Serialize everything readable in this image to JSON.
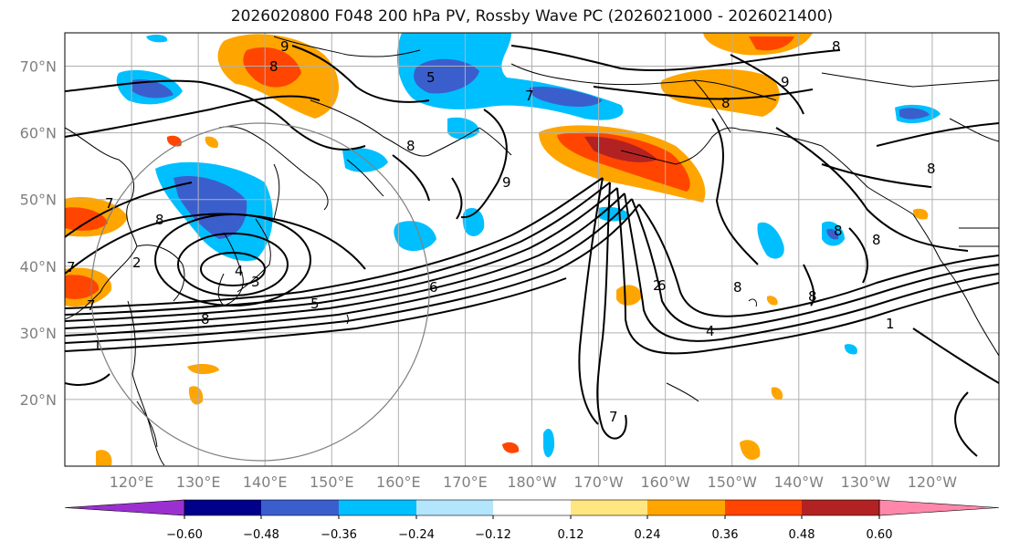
{
  "title": "2026020800 F048 200 hPa PV, Rossby Wave PC (2026021000 - 2026021400)",
  "map": {
    "extent": {
      "lon_min": 110,
      "lon_max": 250,
      "lat_min": 10,
      "lat_max": 75
    },
    "lat_labels": [
      "70°N",
      "60°N",
      "50°N",
      "40°N",
      "30°N",
      "20°N"
    ],
    "lon_labels": [
      "120°E",
      "130°E",
      "140°E",
      "150°E",
      "160°E",
      "170°E",
      "180°W",
      "170°W",
      "160°W",
      "150°W",
      "140°W",
      "130°W",
      "120°W"
    ],
    "contour_labels": [
      "7",
      "8",
      "9",
      "5",
      "6",
      "7",
      "8",
      "9",
      "8",
      "8",
      "9",
      "8",
      "7",
      "8",
      "8",
      "7",
      "6",
      "5",
      "4",
      "3",
      "2",
      "1",
      "8",
      "2",
      "4",
      "1",
      "8",
      "8",
      "8",
      "7"
    ],
    "grid": true,
    "colors": {
      "contour": "#000000",
      "coast": "#000000",
      "grid": "#b0b0b0",
      "neg_strong": "#3a5fcd",
      "neg_mid": "#00bfff",
      "neg_weak": "#b3e5fc",
      "pos_weak": "#ffe680",
      "pos_mid": "#ffa500",
      "pos_strong": "#ff4500",
      "pos_max": "#b22222"
    }
  },
  "colorbar": {
    "ticks": [
      "−0.60",
      "−0.48",
      "−0.36",
      "−0.24",
      "−0.12",
      "0.12",
      "0.24",
      "0.36",
      "0.48",
      "0.60"
    ],
    "colors": [
      "#9b30d0",
      "#00008b",
      "#3a5fcd",
      "#00bfff",
      "#b3e5fc",
      "#ffffff",
      "#ffe680",
      "#ffa500",
      "#ff4500",
      "#b22222",
      "#ff88aa"
    ]
  }
}
